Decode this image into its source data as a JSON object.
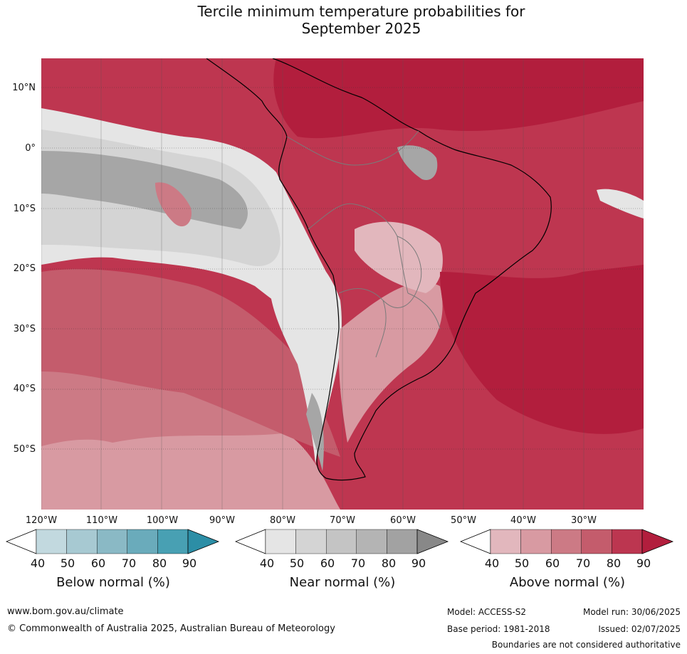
{
  "header": {
    "title_line1": "Tercile minimum temperature probabilities for",
    "title_line2": "September 2025"
  },
  "map": {
    "lat_labels": [
      "10°N",
      "0°",
      "10°S",
      "20°S",
      "30°S",
      "40°S",
      "50°S"
    ],
    "lon_labels": [
      "120°W",
      "110°W",
      "100°W",
      "90°W",
      "80°W",
      "70°W",
      "60°W",
      "50°W",
      "40°W",
      "30°W"
    ]
  },
  "colorbars": [
    {
      "label": "Below normal (%)",
      "ticks": [
        "40",
        "50",
        "60",
        "70",
        "80",
        "90"
      ],
      "colors": [
        "#ffffff",
        "#c2d9df",
        "#a7c9d2",
        "#8ab9c5",
        "#6aabbb",
        "#48a0b3",
        "#2c8ea6"
      ]
    },
    {
      "label": "Near normal (%)",
      "ticks": [
        "40",
        "50",
        "60",
        "70",
        "80",
        "90"
      ],
      "colors": [
        "#ffffff",
        "#e5e5e5",
        "#d4d4d4",
        "#c4c4c4",
        "#b4b4b4",
        "#a2a2a2",
        "#888888"
      ]
    },
    {
      "label": "Above normal (%)",
      "ticks": [
        "40",
        "50",
        "60",
        "70",
        "80",
        "90"
      ],
      "colors": [
        "#ffffff",
        "#e2b7bd",
        "#d89aa2",
        "#cc7a85",
        "#c45c6c",
        "#bc3650",
        "#b21e3d"
      ]
    }
  ],
  "footer": {
    "website": "www.bom.gov.au/climate",
    "copyright": "© Commonwealth of Australia 2025, Australian Bureau of Meteorology",
    "model": "Model: ACCESS-S2",
    "base_period": "Base period: 1981-2018",
    "model_run": "Model run: 30/06/2025",
    "issued": "Issued: 02/07/2025",
    "disclaimer": "Boundaries are not considered authoritative"
  }
}
